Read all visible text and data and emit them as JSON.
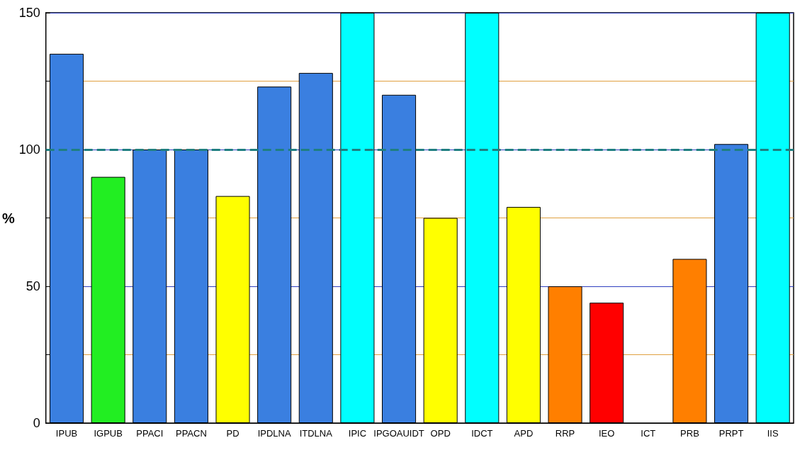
{
  "chart_data": {
    "type": "bar",
    "ylabel": "%",
    "categories": [
      "IPUB",
      "IGPUB",
      "PPACI",
      "PPACN",
      "PD",
      "IPDLNA",
      "ITDLNA",
      "IPIC",
      "IPGOAUIDT",
      "OPD",
      "IDCT",
      "APD",
      "RRP",
      "IEO",
      "ICT",
      "PRB",
      "PRPT",
      "IIS"
    ],
    "values": [
      135,
      90,
      100,
      100,
      83,
      123,
      128,
      150,
      120,
      75,
      150,
      79,
      50,
      44,
      null,
      60,
      102,
      150
    ],
    "colors": [
      "#3a7fe0",
      "#22ee22",
      "#3a7fe0",
      "#3a7fe0",
      "#ffff00",
      "#3a7fe0",
      "#3a7fe0",
      "#00ffff",
      "#3a7fe0",
      "#ffff00",
      "#00ffff",
      "#ffff00",
      "#ff7f00",
      "#ff0000",
      "#ff7f00",
      "#ff7f00",
      "#3a7fe0",
      "#00ffff"
    ],
    "ylim": [
      0,
      150
    ],
    "yticks": [
      0,
      {
        "value": 25,
        "label": null
      },
      50,
      {
        "value": 75,
        "label": null
      },
      100,
      {
        "value": 125,
        "label": null
      },
      150
    ],
    "grid": "y",
    "ref_lines": [
      {
        "axis": "y",
        "value": 100,
        "label": null,
        "color": "#1f7f80",
        "line_style": "dashed"
      }
    ]
  }
}
